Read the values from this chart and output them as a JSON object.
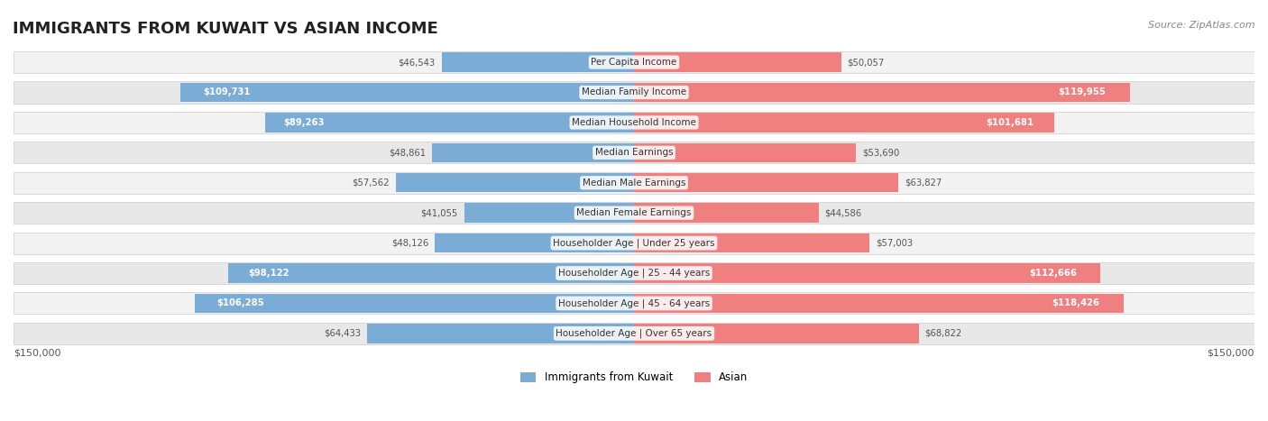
{
  "title": "IMMIGRANTS FROM KUWAIT VS ASIAN INCOME",
  "source": "Source: ZipAtlas.com",
  "categories": [
    "Per Capita Income",
    "Median Family Income",
    "Median Household Income",
    "Median Earnings",
    "Median Male Earnings",
    "Median Female Earnings",
    "Householder Age | Under 25 years",
    "Householder Age | 25 - 44 years",
    "Householder Age | 45 - 64 years",
    "Householder Age | Over 65 years"
  ],
  "kuwait_values": [
    46543,
    109731,
    89263,
    48861,
    57562,
    41055,
    48126,
    98122,
    106285,
    64433
  ],
  "asian_values": [
    50057,
    119955,
    101681,
    53690,
    63827,
    44586,
    57003,
    112666,
    118426,
    68822
  ],
  "kuwait_color": "#7aacd6",
  "asian_color": "#f08080",
  "kuwait_label_color_threshold": 80000,
  "asian_label_color_threshold": 80000,
  "max_value": 150000,
  "x_label_left": "$150,000",
  "x_label_right": "$150,000",
  "legend_kuwait": "Immigrants from Kuwait",
  "legend_asian": "Asian",
  "background_color": "#ffffff",
  "bar_bg_color": "#f0f0f0",
  "row_bg_even": "#f7f7f7",
  "row_bg_odd": "#ebebeb"
}
